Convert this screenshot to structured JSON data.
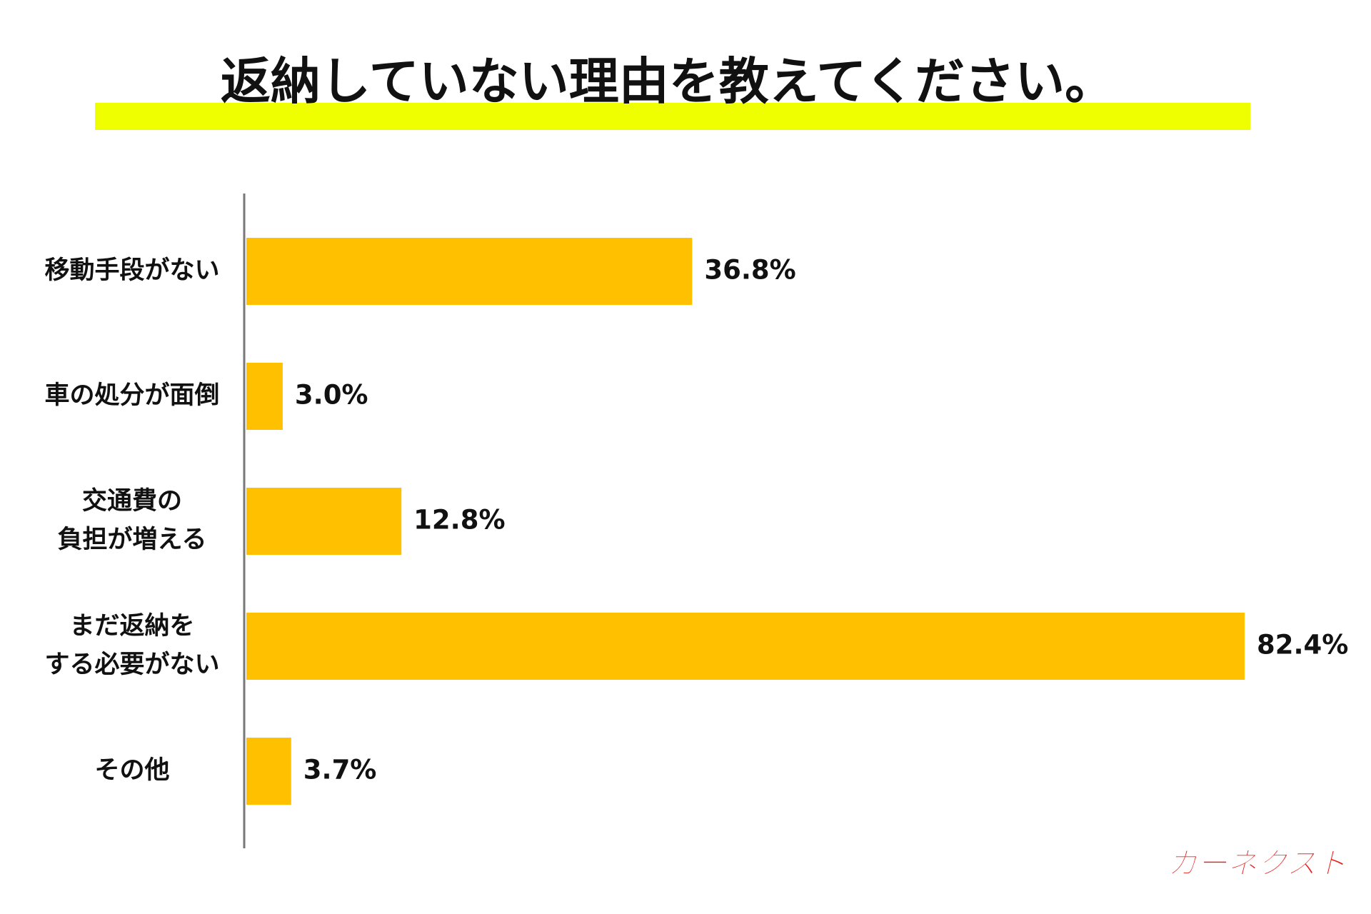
{
  "chart_data": {
    "type": "bar",
    "orientation": "horizontal",
    "title": "返納していない理由を教えてください。",
    "categories": [
      [
        "移動手段がない"
      ],
      [
        "車の処分が面倒"
      ],
      [
        "交通費の",
        "負担が増える"
      ],
      [
        "まだ返納を",
        "する必要がない"
      ],
      [
        "その他"
      ]
    ],
    "values": [
      36.8,
      3.0,
      12.8,
      82.4,
      3.7
    ],
    "value_labels": [
      "36.8%",
      "3.0%",
      "12.8%",
      "82.4%",
      "3.7%"
    ],
    "color": "#ffc000",
    "highlight_color": "#f0ff00",
    "logo": "カーネクスト"
  }
}
